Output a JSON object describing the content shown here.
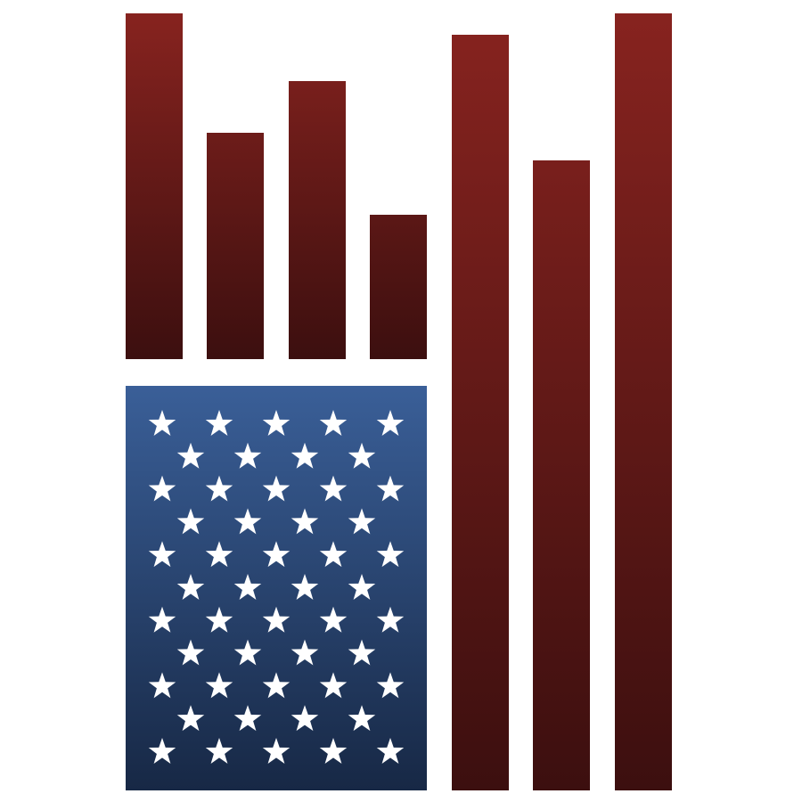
{
  "logo": {
    "colors": {
      "background": "#ffffff",
      "stripe_top": "#87231f",
      "stripe_bottom": "#3c0f0f",
      "canton_top": "#3a5f98",
      "canton_bottom": "#172845",
      "star": "#ffffff"
    },
    "stripe_count": 7,
    "star_rows": [
      5,
      4,
      5,
      4,
      5,
      4,
      5,
      4,
      5,
      4,
      5
    ],
    "star_total": 50,
    "icon_name": "flag-bar-chart-icon"
  }
}
